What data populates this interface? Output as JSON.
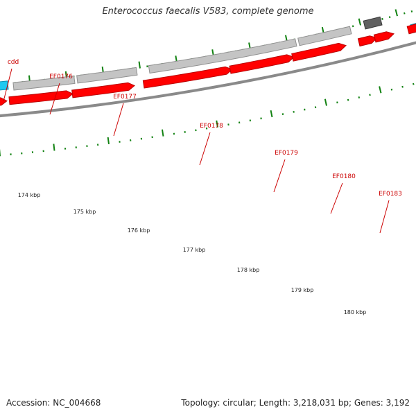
{
  "title": "Enterococcus faecalis V583, complete genome",
  "footer": {
    "accession": "Accession: NC_004668",
    "summary": "Topology: circular; Length: 3,218,031 bp; Genes: 3,192"
  },
  "genes": [
    {
      "name": "cdd"
    },
    {
      "name": "EF0176"
    },
    {
      "name": "EF0177"
    },
    {
      "name": "EF0178"
    },
    {
      "name": "EF0179"
    },
    {
      "name": "EF0180"
    },
    {
      "name": "EF0183"
    }
  ],
  "kbp_labels": [
    "174 kbp",
    "175 kbp",
    "176 kbp",
    "177 kbp",
    "178 kbp",
    "179 kbp",
    "180 kbp"
  ],
  "colors": {
    "cds_red": "#ff0000",
    "cds_red_dark": "#b80000",
    "grey_block": "#c4c4c4",
    "grey_block_dark": "#909090",
    "dark_block": "#606060",
    "cyan_block": "#1ec8f0",
    "tick_green": "#128212",
    "label_red": "#cc0000",
    "backbone": "#8a8a8a"
  }
}
